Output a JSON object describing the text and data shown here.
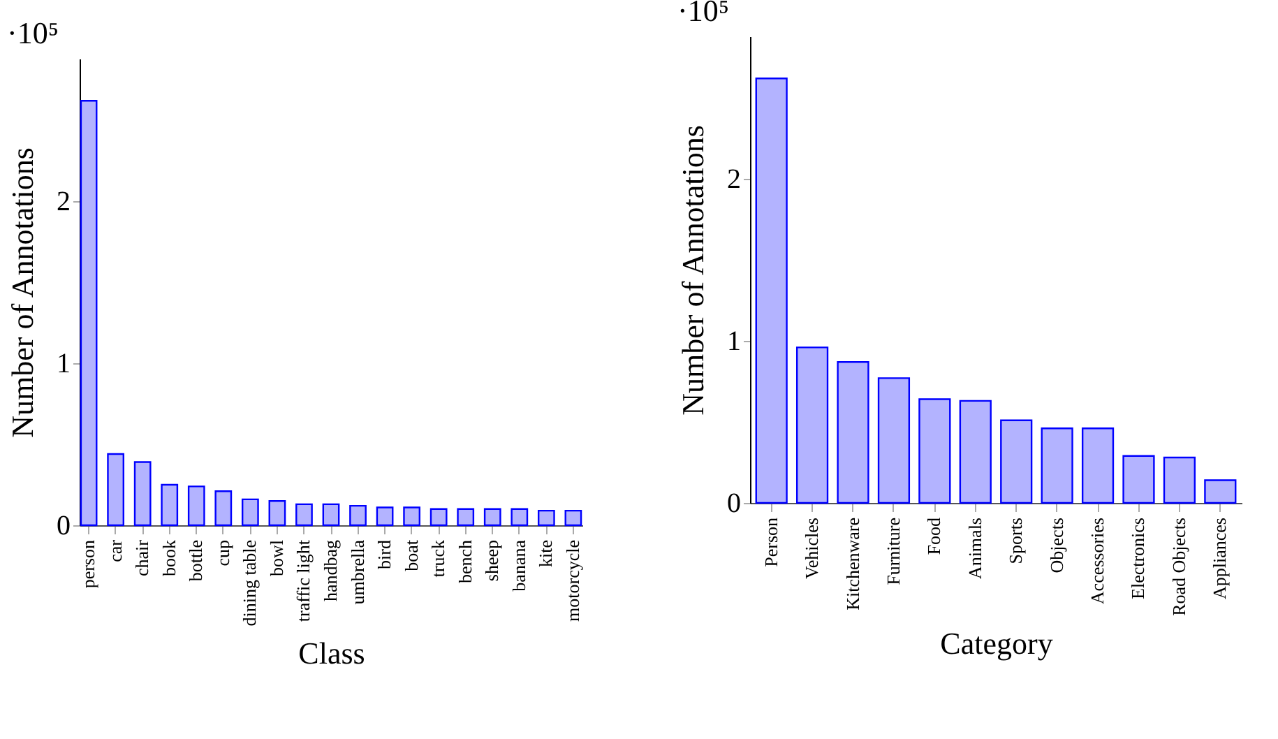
{
  "chart_data": [
    {
      "type": "bar",
      "xlabel": "Class",
      "ylabel": "Number of Annotations",
      "annotations": [
        "·10⁵"
      ],
      "categories": [
        "person",
        "car",
        "chair",
        "book",
        "bottle",
        "cup",
        "dining table",
        "bowl",
        "traffic light",
        "handbag",
        "umbrella",
        "bird",
        "boat",
        "truck",
        "bench",
        "sheep",
        "banana",
        "kite",
        "motorcycle"
      ],
      "values": [
        2.62,
        0.44,
        0.39,
        0.25,
        0.24,
        0.21,
        0.16,
        0.15,
        0.13,
        0.13,
        0.12,
        0.11,
        0.11,
        0.1,
        0.1,
        0.1,
        0.1,
        0.09,
        0.09
      ],
      "color": "#b3b3ff",
      "ylim": [
        0,
        2.88
      ],
      "yticks": [
        0,
        1,
        2
      ]
    },
    {
      "type": "bar",
      "xlabel": "Category",
      "ylabel": "Number of Annotations",
      "annotations": [
        "·10⁵"
      ],
      "categories": [
        "Person",
        "Vehicles",
        "Kitchenware",
        "Furniture",
        "Food",
        "Animals",
        "Sports",
        "Objects",
        "Accessories",
        "Electronics",
        "Road Objects",
        "Appliances"
      ],
      "values": [
        2.62,
        0.96,
        0.87,
        0.77,
        0.64,
        0.63,
        0.51,
        0.46,
        0.46,
        0.29,
        0.28,
        0.14
      ],
      "color": "#b3b3ff",
      "ylim": [
        0,
        2.88
      ],
      "yticks": [
        0,
        1,
        2
      ]
    }
  ]
}
